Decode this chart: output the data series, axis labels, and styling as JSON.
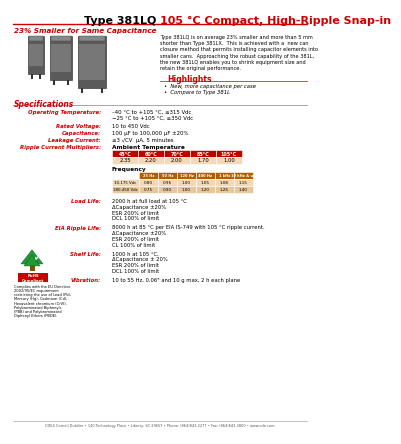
{
  "title_black": "Type 381LQ ",
  "title_red": "105 °C Compact, High-Ripple Snap-in",
  "subtitle": "23% Smaller for Same Capacitance",
  "bg_color": "#ffffff",
  "red_color": "#cc0000",
  "orange_color": "#b86000",
  "specs_title": "Specifications",
  "operating_temp_line1": "–40 °C to +105 °C, ≤315 Vdc",
  "operating_temp_line2": "−25 °C to +105 °C, ≥350 Vdc",
  "rated_voltage": "10 to 450 Vdc",
  "capacitance": "100 μF to 100,000 μF ±20%",
  "leakage_current": "≤3 √CV  μA, 5 minutes",
  "ripple_multipliers_header": "Ambient Temperature",
  "amb_temp_cols": [
    "45°C",
    "60°C",
    "70°C",
    "85°C",
    "105°C"
  ],
  "amb_temp_vals": [
    "2.35",
    "2.20",
    "2.00",
    "1.70",
    "1.00"
  ],
  "freq_header": "Frequency",
  "freq_cols": [
    "25 Hz",
    "50 Hz",
    "120 Hz",
    "400 Hz",
    "1 kHz",
    "10 kHz & up"
  ],
  "freq_row1_label": "10-175 Vdc",
  "freq_row1_vals": [
    "0.80",
    "0.95",
    "1.00",
    "1.05",
    "1.08",
    "1.15"
  ],
  "freq_row2_label": "180-450 Vdc",
  "freq_row2_vals": [
    "0.75",
    "0.90",
    "1.00",
    "1.20",
    "1.25",
    "1.40"
  ],
  "load_life_label": "Load Life:",
  "load_life_lines": [
    "2000 h at full load at 105 °C",
    "ΔCapacitance ±20%",
    "ESR 200% of limit",
    "DCL 100% of limit"
  ],
  "eia_ripple_label": "EIA Ripple Life:",
  "eia_ripple_lines": [
    "8000 h at 85 °C per EIA IS-749 with 105 °C ripple current.",
    "ΔCapacitance ±20%",
    "ESR 200% of limit",
    "CL 100% of limit"
  ],
  "shelf_life_label": "Shelf Life:",
  "shelf_life_lines": [
    "1000 h at 105 °C,",
    "ΔCapacitance ± 20%",
    "ESR 200% of limit",
    "DCL 100% of limit"
  ],
  "vibration_label": "Vibration:",
  "vibration_lines": [
    "10 to 55 Hz, 0.06\" and 10 g max, 2 h each plane"
  ],
  "highlights_title": "Highlights",
  "highlight1": "New, more capacitance per case",
  "highlight2": "Compare to Type 381L",
  "desc_lines": [
    "Type 381LQ is on average 23% smaller and more than 5 mm",
    "shorter than Type 381LX.  This is achieved with a  new can",
    "closure method that permits installing capacitor elements into",
    "smaller cans.  Approaching the robust capability of the 381L,",
    "the new 381LQ enables you to shrink equipment size and",
    "retain the original performance."
  ],
  "footer": "CDE4 Cornell Dubilier • 140 Technology Place • Liberty, SC 29657 • Phone: (864)843-2277 • Fax: (864)843-3800 • www.cde.com",
  "rohs_text_lines": [
    "Complies with the EU Directive",
    "2002/95/EC requirement",
    "restricting the use of Lead (Pb),",
    "Mercury (Hg), Cadmium (Cd),",
    "Hexavalent chromium (CrVI),",
    "Polybrominated Biphenyls",
    "(PBB) and Polybrominated",
    "Diphenyl Ethers (PBDE)."
  ],
  "table_header_bg": "#c00000",
  "freq_header_bg": "#b06000",
  "freq_row1_bg": "#f0d8b8",
  "freq_row2_bg": "#e8c898",
  "amb_row_bg": "#f5d8b8"
}
